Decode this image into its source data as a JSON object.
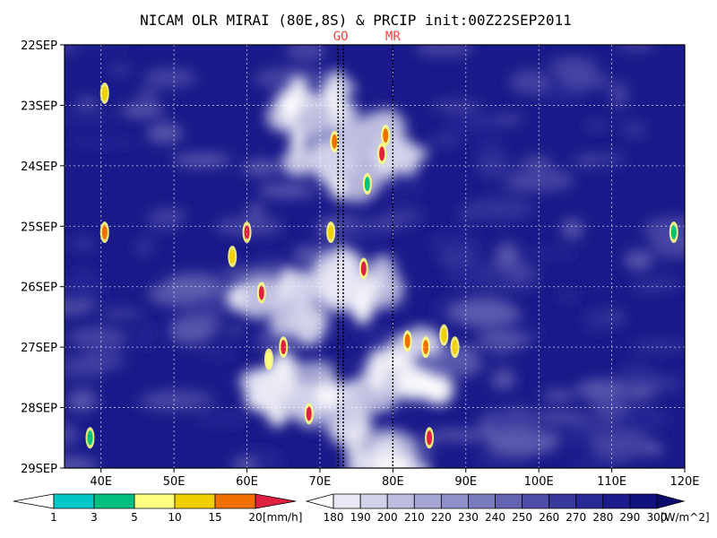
{
  "chart_data": {
    "type": "heatmap",
    "title": "NICAM OLR MIRAI (80E,8S) & PRCIP init:00Z22SEP2011",
    "xlabel": "",
    "ylabel": "",
    "x_axis": {
      "range": [
        35,
        120
      ],
      "unit": "degE",
      "ticks": [
        40,
        50,
        60,
        70,
        80,
        90,
        100,
        110,
        120
      ],
      "tick_labels": [
        "40E",
        "50E",
        "60E",
        "70E",
        "80E",
        "90E",
        "100E",
        "110E",
        "120E"
      ]
    },
    "y_axis": {
      "range": [
        "2011-09-22",
        "2011-09-29"
      ],
      "direction": "downward",
      "ticks": [
        "2011-09-22",
        "2011-09-23",
        "2011-09-24",
        "2011-09-25",
        "2011-09-26",
        "2011-09-27",
        "2011-09-28",
        "2011-09-29"
      ],
      "tick_labels": [
        "22SEP",
        "23SEP",
        "24SEP",
        "25SEP",
        "26SEP",
        "27SEP",
        "28SEP",
        "29SEP"
      ]
    },
    "grid": true,
    "vertical_markers": [
      {
        "label": "GO",
        "lons": [
          72.5,
          73.2
        ],
        "style": "dotted"
      },
      {
        "label": "MR",
        "lons": [
          80.0
        ],
        "style": "dotted"
      }
    ],
    "olr_shading": {
      "unit_label": "W/m^2",
      "levels": [
        180,
        190,
        200,
        210,
        220,
        230,
        240,
        250,
        260,
        270,
        280,
        290,
        300
      ],
      "colors": [
        "#ffffff",
        "#e8e8f4",
        "#d2d2ea",
        "#bcbcdf",
        "#a6a6d4",
        "#9090c9",
        "#7a7abe",
        "#6464b3",
        "#4e4ea8",
        "#38389d",
        "#282896",
        "#1c1c8c",
        "#10107e",
        "#0b0b6e"
      ]
    },
    "precip_shading": {
      "unit_label": "[mm/h]",
      "levels": [
        1,
        3,
        5,
        10,
        15,
        20
      ],
      "colors": [
        "#ffffff",
        "#00c8c8",
        "#00c080",
        "#ffff80",
        "#f0d000",
        "#f07000",
        "#e02040"
      ]
    },
    "convection_bands": [
      {
        "lon": 68.5,
        "date": "2011-09-23",
        "intensity": 0.9
      },
      {
        "lon": 71,
        "date": "2011-09-24",
        "intensity": 0.95
      },
      {
        "lon": 78.5,
        "date": "2011-09-23.6",
        "intensity": 0.9
      },
      {
        "lon": 64.5,
        "date": "2011-09-26.4",
        "intensity": 1.0
      },
      {
        "lon": 75.5,
        "date": "2011-09-26.0",
        "intensity": 0.95
      },
      {
        "lon": 66,
        "date": "2011-09-27.6",
        "intensity": 0.9
      },
      {
        "lon": 74,
        "date": "2011-09-28.0",
        "intensity": 0.9
      },
      {
        "lon": 82,
        "date": "2011-09-27.3",
        "intensity": 0.8
      },
      {
        "lon": 78,
        "date": "2011-09-28.8",
        "intensity": 0.7
      }
    ],
    "precip_spots": [
      {
        "lon": 40.5,
        "date": "2011-09-22.8",
        "mmh": 12
      },
      {
        "lon": 40.5,
        "date": "2011-09-25.1",
        "mmh": 16
      },
      {
        "lon": 60,
        "date": "2011-09-25.1",
        "mmh": 20
      },
      {
        "lon": 62,
        "date": "2011-09-26.1",
        "mmh": 20
      },
      {
        "lon": 65,
        "date": "2011-09-27.0",
        "mmh": 20
      },
      {
        "lon": 63,
        "date": "2011-09-27.2",
        "mmh": 5
      },
      {
        "lon": 68.5,
        "date": "2011-09-28.1",
        "mmh": 20
      },
      {
        "lon": 72,
        "date": "2011-09-23.6",
        "mmh": 15
      },
      {
        "lon": 71.5,
        "date": "2011-09-25.1",
        "mmh": 12
      },
      {
        "lon": 76.5,
        "date": "2011-09-24.3",
        "mmh": 3
      },
      {
        "lon": 78.5,
        "date": "2011-09-23.8",
        "mmh": 20
      },
      {
        "lon": 79,
        "date": "2011-09-23.5",
        "mmh": 15
      },
      {
        "lon": 76,
        "date": "2011-09-25.7",
        "mmh": 20
      },
      {
        "lon": 82,
        "date": "2011-09-26.9",
        "mmh": 15
      },
      {
        "lon": 87,
        "date": "2011-09-26.8",
        "mmh": 12
      },
      {
        "lon": 88.5,
        "date": "2011-09-27.0",
        "mmh": 10
      },
      {
        "lon": 84.5,
        "date": "2011-09-27.0",
        "mmh": 15
      },
      {
        "lon": 85,
        "date": "2011-09-28.5",
        "mmh": 20
      },
      {
        "lon": 58,
        "date": "2011-09-25.5",
        "mmh": 10
      },
      {
        "lon": 118.5,
        "date": "2011-09-25.1",
        "mmh": 3
      },
      {
        "lon": 38.5,
        "date": "2011-09-28.5",
        "mmh": 3
      }
    ]
  }
}
